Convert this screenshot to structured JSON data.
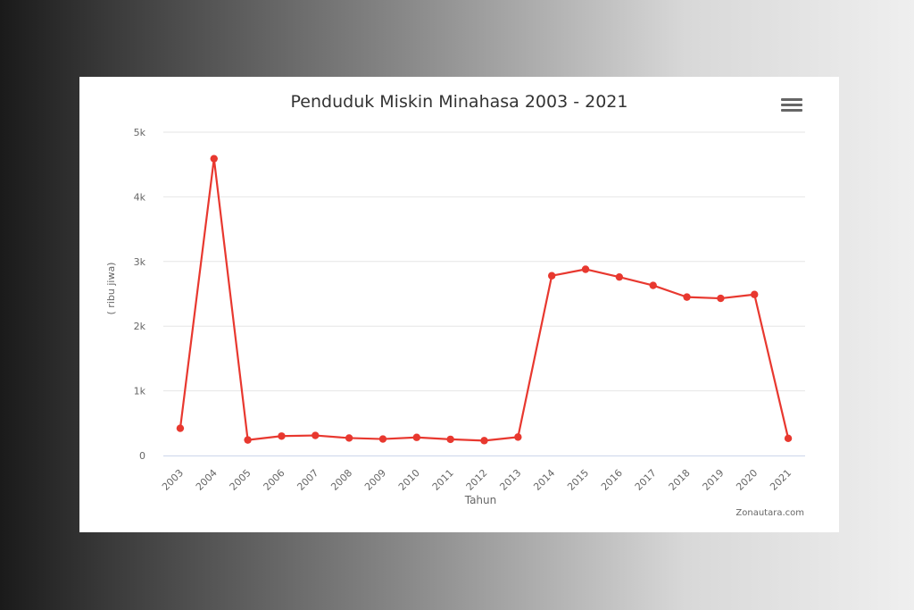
{
  "chart_data": {
    "type": "line",
    "title": "Penduduk Miskin Minahasa 2003 - 2021",
    "xlabel": "Tahun",
    "ylabel": "( ribu jiwa)",
    "categories": [
      "2003",
      "2004",
      "2005",
      "2006",
      "2007",
      "2008",
      "2009",
      "2010",
      "2011",
      "2012",
      "2013",
      "2014",
      "2015",
      "2016",
      "2017",
      "2018",
      "2019",
      "2020",
      "2021"
    ],
    "series": [
      {
        "values": [
          420,
          4590,
          240,
          300,
          310,
          270,
          255,
          280,
          250,
          230,
          285,
          2780,
          2880,
          2760,
          2630,
          2450,
          2430,
          2490,
          265
        ]
      }
    ],
    "ylim": [
      0,
      5000
    ],
    "yticks": [
      "0",
      "1k",
      "2k",
      "3k",
      "4k",
      "5k"
    ],
    "grid": true,
    "legend": "none",
    "colors": {
      "line": "#e8382f",
      "grid": "#e6e6e6",
      "axis": "#ccd6eb",
      "text": "#666666"
    }
  },
  "menu_icon": "hamburger-menu-icon",
  "credit": "Zonautara.com"
}
